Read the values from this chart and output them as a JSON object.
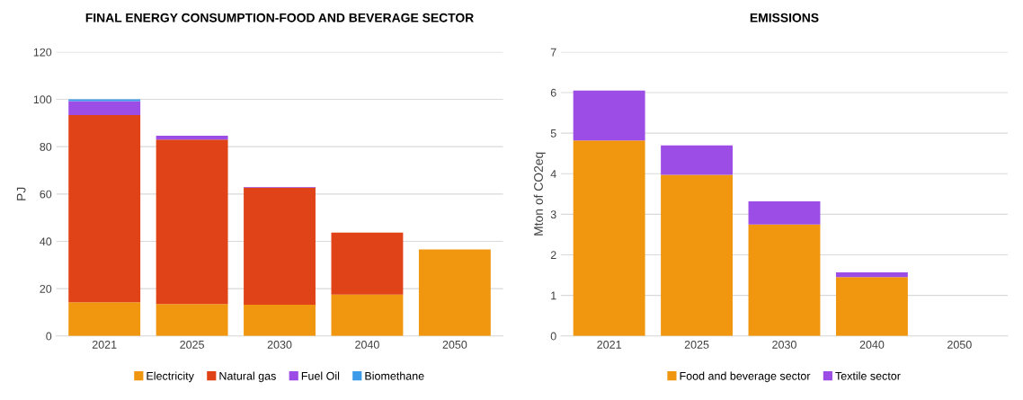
{
  "chart_data": [
    {
      "type": "bar",
      "title": "FINAL ENERGY CONSUMPTION-FOOD AND BEVERAGE SECTOR",
      "ylabel": "PJ",
      "stacked": true,
      "categories": [
        "2021",
        "2025",
        "2030",
        "2040",
        "2050"
      ],
      "ylim": [
        0,
        120
      ],
      "yticks": [
        0,
        20,
        40,
        60,
        80,
        100,
        120
      ],
      "grid": "y",
      "legend": "bottom",
      "series": [
        {
          "name": "Electricity",
          "color": "#f0960f",
          "values": [
            14.3,
            13.5,
            13.2,
            17.5,
            36.6
          ]
        },
        {
          "name": "Natural gas",
          "color": "#e04317",
          "values": [
            79.1,
            69.5,
            49.5,
            26.2,
            0
          ]
        },
        {
          "name": "Fuel Oil",
          "color": "#9b4de6",
          "values": [
            5.8,
            1.6,
            0.3,
            0,
            0
          ]
        },
        {
          "name": "Biomethane",
          "color": "#3d9be9",
          "values": [
            0.8,
            0,
            0,
            0,
            0
          ]
        }
      ]
    },
    {
      "type": "bar",
      "title": "EMISSIONS",
      "ylabel": "Mton of CO2eq",
      "stacked": true,
      "categories": [
        "2021",
        "2025",
        "2030",
        "2040",
        "2050"
      ],
      "ylim": [
        0,
        7
      ],
      "yticks": [
        0,
        1,
        2,
        3,
        4,
        5,
        6,
        7
      ],
      "grid": "y",
      "legend": "bottom",
      "series": [
        {
          "name": "Food and beverage sector",
          "color": "#f0960f",
          "values": [
            4.82,
            3.97,
            2.75,
            1.45,
            0
          ]
        },
        {
          "name": "Textile sector",
          "color": "#9b4de6",
          "values": [
            1.23,
            0.73,
            0.57,
            0.12,
            0
          ]
        }
      ]
    }
  ]
}
